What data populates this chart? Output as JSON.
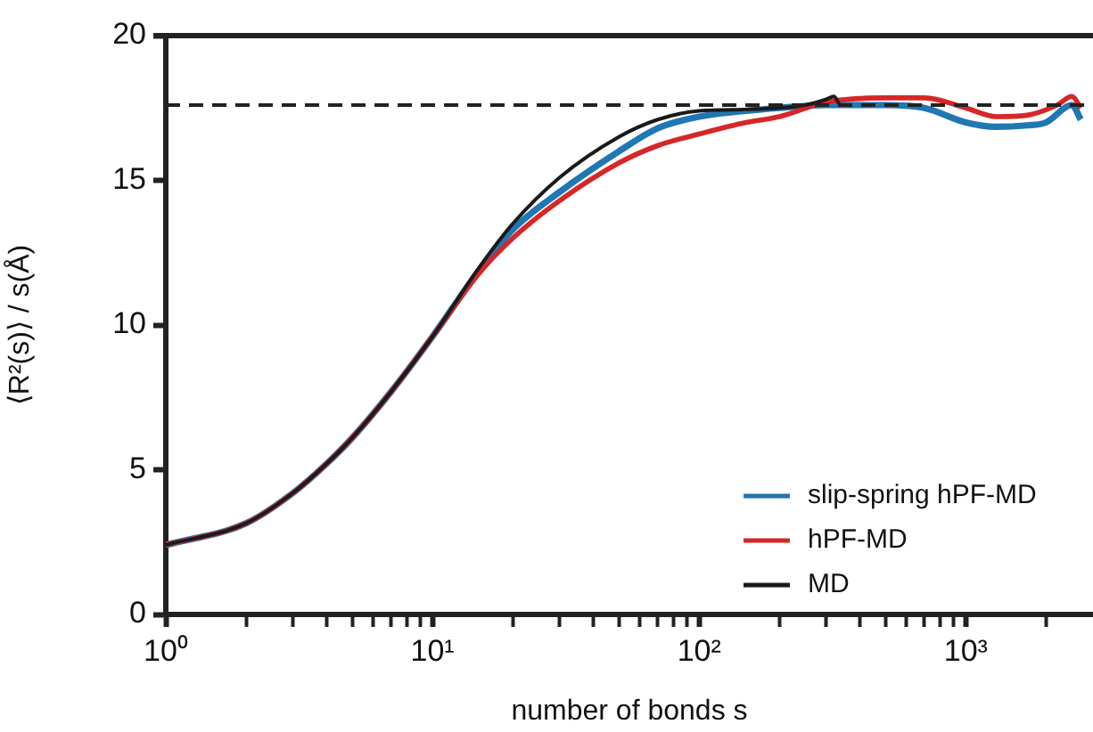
{
  "chart_data": {
    "type": "line",
    "xlabel": "number of bonds s",
    "ylabel": "⟨R²(s)⟩ / s(Å)",
    "log": "x",
    "xlim": [
      1,
      3000
    ],
    "ylim": [
      0,
      20
    ],
    "xticks": [
      {
        "value": 1,
        "label": "10⁰"
      },
      {
        "value": 2,
        "label": null
      },
      {
        "value": 3,
        "label": null
      },
      {
        "value": 4,
        "label": null
      },
      {
        "value": 5,
        "label": null
      },
      {
        "value": 6,
        "label": null
      },
      {
        "value": 7,
        "label": null
      },
      {
        "value": 8,
        "label": null
      },
      {
        "value": 9,
        "label": null
      },
      {
        "value": 10,
        "label": "10¹"
      },
      {
        "value": 20,
        "label": null
      },
      {
        "value": 30,
        "label": null
      },
      {
        "value": 40,
        "label": null
      },
      {
        "value": 50,
        "label": null
      },
      {
        "value": 60,
        "label": null
      },
      {
        "value": 70,
        "label": null
      },
      {
        "value": 80,
        "label": null
      },
      {
        "value": 90,
        "label": null
      },
      {
        "value": 100,
        "label": "10²"
      },
      {
        "value": 200,
        "label": null
      },
      {
        "value": 300,
        "label": null
      },
      {
        "value": 400,
        "label": null
      },
      {
        "value": 500,
        "label": null
      },
      {
        "value": 600,
        "label": null
      },
      {
        "value": 700,
        "label": null
      },
      {
        "value": 800,
        "label": null
      },
      {
        "value": 900,
        "label": null
      },
      {
        "value": 1000,
        "label": "10³"
      },
      {
        "value": 2000,
        "label": null
      }
    ],
    "yticks": [
      0,
      5,
      10,
      15,
      20
    ],
    "grid": false,
    "legend": "bottom right",
    "line_style": "solid",
    "marker": "none",
    "ref_lines": [
      {
        "axis": "y",
        "value": 17.6,
        "color": "#222222",
        "line_style": "dashed"
      }
    ],
    "series": [
      {
        "name": "slip-spring hPF-MD",
        "color": "#1f77b4",
        "x": [
          1,
          2,
          3,
          4,
          5,
          7,
          10,
          15,
          20,
          30,
          50,
          70,
          100,
          150,
          200,
          300,
          500,
          700,
          1000,
          1300,
          1700,
          2000,
          2500,
          2700
        ],
        "values": [
          2.4,
          3.15,
          4.2,
          5.2,
          6.1,
          7.7,
          9.6,
          11.9,
          13.3,
          14.6,
          16.0,
          16.8,
          17.2,
          17.4,
          17.5,
          17.6,
          17.6,
          17.5,
          17.0,
          16.85,
          16.9,
          17.0,
          17.6,
          17.1
        ]
      },
      {
        "name": "hPF-MD",
        "color": "#d62728",
        "x": [
          1,
          2,
          3,
          4,
          5,
          7,
          10,
          15,
          20,
          30,
          50,
          70,
          100,
          150,
          200,
          300,
          500,
          700,
          1000,
          1300,
          1700,
          2200,
          2500,
          2700
        ],
        "values": [
          2.4,
          3.15,
          4.2,
          5.2,
          6.1,
          7.7,
          9.6,
          11.8,
          13.0,
          14.3,
          15.6,
          16.2,
          16.6,
          17.0,
          17.2,
          17.7,
          17.85,
          17.85,
          17.5,
          17.2,
          17.25,
          17.6,
          17.9,
          17.5
        ]
      },
      {
        "name": "MD",
        "color": "#1a1a1a",
        "x": [
          1,
          2,
          3,
          4,
          5,
          7,
          10,
          15,
          20,
          30,
          50,
          70,
          100,
          150,
          200,
          250,
          300,
          320,
          340,
          365
        ],
        "values": [
          2.4,
          3.15,
          4.2,
          5.2,
          6.1,
          7.7,
          9.6,
          12.0,
          13.5,
          15.1,
          16.5,
          17.1,
          17.4,
          17.45,
          17.5,
          17.6,
          17.8,
          17.9,
          17.6,
          17.6
        ]
      }
    ]
  }
}
